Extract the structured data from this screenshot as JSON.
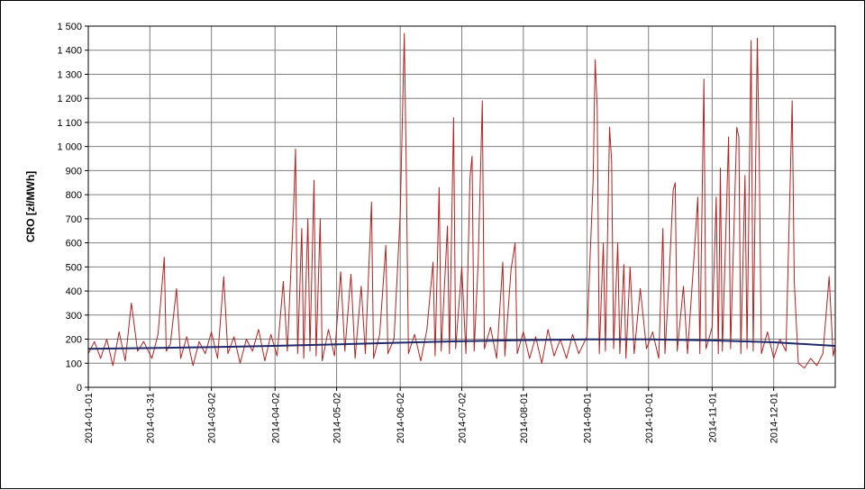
{
  "chart_data": {
    "type": "line",
    "title": "",
    "xlabel": "",
    "ylabel": "CRO [zł/MWh]",
    "ylim": [
      0,
      1500
    ],
    "y_ticks": [
      0,
      100,
      200,
      300,
      400,
      500,
      600,
      700,
      800,
      900,
      1000,
      1100,
      1200,
      1300,
      1400,
      1500
    ],
    "y_tick_labels": [
      "0",
      "100",
      "200",
      "300",
      "400",
      "500",
      "600",
      "700",
      "800",
      "900",
      "1 000",
      "1 100",
      "1 200",
      "1 300",
      "1 400",
      "1 500"
    ],
    "xlim": [
      "2014-01-01",
      "2014-12-31"
    ],
    "x_tick_labels": [
      "2014-01-01",
      "2014-01-31",
      "2014-03-02",
      "2014-04-02",
      "2014-05-02",
      "2014-06-02",
      "2014-07-02",
      "2014-08-01",
      "2014-09-01",
      "2014-10-01",
      "2014-11-01",
      "2014-12-01"
    ],
    "grid": true,
    "legend": "none",
    "colors": {
      "series": "#b22222",
      "trend": "#1f2a6b",
      "grid": "#808080"
    },
    "series": [
      {
        "role": "hourly price",
        "points": [
          [
            "2014-01-01",
            140
          ],
          [
            "2014-01-04",
            190
          ],
          [
            "2014-01-07",
            120
          ],
          [
            "2014-01-10",
            200
          ],
          [
            "2014-01-13",
            90
          ],
          [
            "2014-01-16",
            230
          ],
          [
            "2014-01-19",
            110
          ],
          [
            "2014-01-22",
            350
          ],
          [
            "2014-01-25",
            150
          ],
          [
            "2014-01-28",
            190
          ],
          [
            "2014-02-01",
            120
          ],
          [
            "2014-02-04",
            220
          ],
          [
            "2014-02-07",
            540
          ],
          [
            "2014-02-08",
            150
          ],
          [
            "2014-02-10",
            180
          ],
          [
            "2014-02-13",
            410
          ],
          [
            "2014-02-15",
            120
          ],
          [
            "2014-02-18",
            210
          ],
          [
            "2014-02-21",
            90
          ],
          [
            "2014-02-24",
            190
          ],
          [
            "2014-02-27",
            140
          ],
          [
            "2014-03-02",
            230
          ],
          [
            "2014-03-05",
            120
          ],
          [
            "2014-03-08",
            460
          ],
          [
            "2014-03-10",
            140
          ],
          [
            "2014-03-13",
            210
          ],
          [
            "2014-03-16",
            100
          ],
          [
            "2014-03-19",
            200
          ],
          [
            "2014-03-22",
            150
          ],
          [
            "2014-03-25",
            240
          ],
          [
            "2014-03-28",
            110
          ],
          [
            "2014-03-31",
            220
          ],
          [
            "2014-04-03",
            130
          ],
          [
            "2014-04-06",
            440
          ],
          [
            "2014-04-08",
            150
          ],
          [
            "2014-04-11",
            730
          ],
          [
            "2014-04-12",
            990
          ],
          [
            "2014-04-13",
            140
          ],
          [
            "2014-04-15",
            660
          ],
          [
            "2014-04-16",
            120
          ],
          [
            "2014-04-18",
            700
          ],
          [
            "2014-04-19",
            150
          ],
          [
            "2014-04-21",
            860
          ],
          [
            "2014-04-22",
            130
          ],
          [
            "2014-04-24",
            700
          ],
          [
            "2014-04-25",
            110
          ],
          [
            "2014-04-28",
            240
          ],
          [
            "2014-05-01",
            130
          ],
          [
            "2014-05-04",
            480
          ],
          [
            "2014-05-06",
            150
          ],
          [
            "2014-05-09",
            470
          ],
          [
            "2014-05-11",
            120
          ],
          [
            "2014-05-14",
            420
          ],
          [
            "2014-05-16",
            140
          ],
          [
            "2014-05-19",
            770
          ],
          [
            "2014-05-20",
            120
          ],
          [
            "2014-05-23",
            220
          ],
          [
            "2014-05-26",
            590
          ],
          [
            "2014-05-27",
            140
          ],
          [
            "2014-05-30",
            200
          ],
          [
            "2014-06-02",
            720
          ],
          [
            "2014-06-04",
            1470
          ],
          [
            "2014-06-05",
            870
          ],
          [
            "2014-06-06",
            140
          ],
          [
            "2014-06-09",
            220
          ],
          [
            "2014-06-12",
            110
          ],
          [
            "2014-06-15",
            240
          ],
          [
            "2014-06-18",
            520
          ],
          [
            "2014-06-19",
            130
          ],
          [
            "2014-06-21",
            830
          ],
          [
            "2014-06-22",
            150
          ],
          [
            "2014-06-25",
            670
          ],
          [
            "2014-06-26",
            140
          ],
          [
            "2014-06-28",
            1120
          ],
          [
            "2014-06-29",
            160
          ],
          [
            "2014-07-02",
            500
          ],
          [
            "2014-07-04",
            140
          ],
          [
            "2014-07-06",
            870
          ],
          [
            "2014-07-07",
            960
          ],
          [
            "2014-07-08",
            150
          ],
          [
            "2014-07-10",
            520
          ],
          [
            "2014-07-12",
            1190
          ],
          [
            "2014-07-13",
            160
          ],
          [
            "2014-07-16",
            250
          ],
          [
            "2014-07-19",
            120
          ],
          [
            "2014-07-22",
            520
          ],
          [
            "2014-07-23",
            130
          ],
          [
            "2014-07-26",
            490
          ],
          [
            "2014-07-28",
            600
          ],
          [
            "2014-07-29",
            140
          ],
          [
            "2014-08-01",
            230
          ],
          [
            "2014-08-04",
            120
          ],
          [
            "2014-08-07",
            210
          ],
          [
            "2014-08-10",
            100
          ],
          [
            "2014-08-13",
            240
          ],
          [
            "2014-08-16",
            130
          ],
          [
            "2014-08-19",
            200
          ],
          [
            "2014-08-22",
            120
          ],
          [
            "2014-08-25",
            220
          ],
          [
            "2014-08-28",
            140
          ],
          [
            "2014-09-01",
            210
          ],
          [
            "2014-09-04",
            860
          ],
          [
            "2014-09-05",
            1360
          ],
          [
            "2014-09-06",
            1160
          ],
          [
            "2014-09-07",
            140
          ],
          [
            "2014-09-09",
            600
          ],
          [
            "2014-09-10",
            150
          ],
          [
            "2014-09-12",
            1080
          ],
          [
            "2014-09-13",
            940
          ],
          [
            "2014-09-14",
            160
          ],
          [
            "2014-09-16",
            600
          ],
          [
            "2014-09-17",
            140
          ],
          [
            "2014-09-19",
            510
          ],
          [
            "2014-09-20",
            120
          ],
          [
            "2014-09-22",
            500
          ],
          [
            "2014-09-24",
            140
          ],
          [
            "2014-09-27",
            410
          ],
          [
            "2014-09-30",
            160
          ],
          [
            "2014-10-03",
            230
          ],
          [
            "2014-10-06",
            120
          ],
          [
            "2014-10-08",
            660
          ],
          [
            "2014-10-09",
            140
          ],
          [
            "2014-10-11",
            450
          ],
          [
            "2014-10-13",
            820
          ],
          [
            "2014-10-14",
            850
          ],
          [
            "2014-10-15",
            150
          ],
          [
            "2014-10-18",
            420
          ],
          [
            "2014-10-20",
            140
          ],
          [
            "2014-10-23",
            520
          ],
          [
            "2014-10-25",
            790
          ],
          [
            "2014-10-26",
            140
          ],
          [
            "2014-10-28",
            1280
          ],
          [
            "2014-10-29",
            160
          ],
          [
            "2014-11-01",
            250
          ],
          [
            "2014-11-03",
            790
          ],
          [
            "2014-11-04",
            140
          ],
          [
            "2014-11-05",
            910
          ],
          [
            "2014-11-06",
            150
          ],
          [
            "2014-11-09",
            1040
          ],
          [
            "2014-11-10",
            160
          ],
          [
            "2014-11-13",
            1080
          ],
          [
            "2014-11-14",
            1040
          ],
          [
            "2014-11-15",
            140
          ],
          [
            "2014-11-17",
            880
          ],
          [
            "2014-11-18",
            160
          ],
          [
            "2014-11-20",
            1440
          ],
          [
            "2014-11-21",
            150
          ],
          [
            "2014-11-23",
            1450
          ],
          [
            "2014-11-24",
            930
          ],
          [
            "2014-11-25",
            140
          ],
          [
            "2014-11-28",
            230
          ],
          [
            "2014-12-01",
            120
          ],
          [
            "2014-12-04",
            200
          ],
          [
            "2014-12-07",
            150
          ],
          [
            "2014-12-10",
            1190
          ],
          [
            "2014-12-11",
            440
          ],
          [
            "2014-12-13",
            100
          ],
          [
            "2014-12-16",
            80
          ],
          [
            "2014-12-19",
            120
          ],
          [
            "2014-12-22",
            90
          ],
          [
            "2014-12-25",
            140
          ],
          [
            "2014-12-28",
            460
          ],
          [
            "2014-12-30",
            130
          ],
          [
            "2014-12-31",
            170
          ]
        ]
      },
      {
        "role": "trend",
        "points": [
          [
            "2014-01-01",
            160
          ],
          [
            "2014-02-01",
            163
          ],
          [
            "2014-03-01",
            167
          ],
          [
            "2014-04-01",
            172
          ],
          [
            "2014-05-01",
            178
          ],
          [
            "2014-06-01",
            185
          ],
          [
            "2014-07-01",
            191
          ],
          [
            "2014-08-01",
            196
          ],
          [
            "2014-09-01",
            199
          ],
          [
            "2014-10-01",
            199
          ],
          [
            "2014-11-01",
            195
          ],
          [
            "2014-12-01",
            187
          ],
          [
            "2014-12-31",
            172
          ]
        ]
      }
    ]
  }
}
